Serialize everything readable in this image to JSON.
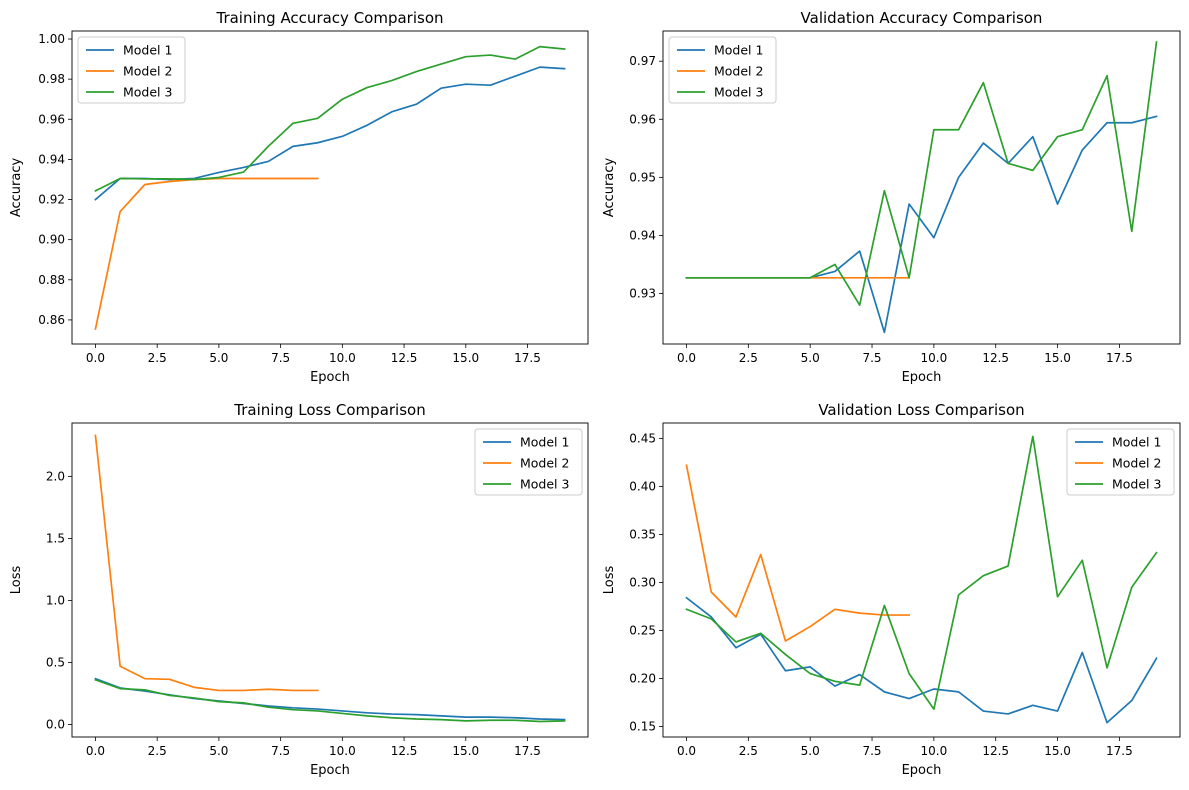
{
  "colors": {
    "Model 1": "#1f77b4",
    "Model 2": "#ff7f0e",
    "Model 3": "#2ca02c"
  },
  "chart_data": [
    {
      "type": "line",
      "title": "Training Accuracy Comparison",
      "xlabel": "Epoch",
      "ylabel": "Accuracy",
      "xlim": [
        -0.95,
        19.95
      ],
      "ylim": [
        0.848,
        1.004
      ],
      "xticks": [
        0.0,
        2.5,
        5.0,
        7.5,
        10.0,
        12.5,
        15.0,
        17.5
      ],
      "xtick_labels": [
        "0.0",
        "2.5",
        "5.0",
        "7.5",
        "10.0",
        "12.5",
        "15.0",
        "17.5"
      ],
      "yticks": [
        0.86,
        0.88,
        0.9,
        0.92,
        0.94,
        0.96,
        0.98,
        1.0
      ],
      "ytick_labels": [
        "0.86",
        "0.88",
        "0.90",
        "0.92",
        "0.94",
        "0.96",
        "0.98",
        "1.00"
      ],
      "legend": "top-left",
      "series": [
        {
          "name": "Model 1",
          "x": [
            0,
            1,
            2,
            3,
            4,
            5,
            6,
            7,
            8,
            9,
            10,
            11,
            12,
            13,
            14,
            15,
            16,
            17,
            18,
            19
          ],
          "values": [
            0.92,
            0.9305,
            0.9305,
            0.93,
            0.9305,
            0.9335,
            0.936,
            0.939,
            0.9465,
            0.9483,
            0.9515,
            0.957,
            0.9637,
            0.9675,
            0.9755,
            0.9775,
            0.977,
            0.9815,
            0.986,
            0.9852
          ]
        },
        {
          "name": "Model 2",
          "x": [
            0,
            1,
            2,
            3,
            4,
            5,
            6,
            7,
            8,
            9
          ],
          "values": [
            0.8555,
            0.914,
            0.9275,
            0.929,
            0.93,
            0.9305,
            0.9305,
            0.9305,
            0.9305,
            0.9305
          ]
        },
        {
          "name": "Model 3",
          "x": [
            0,
            1,
            2,
            3,
            4,
            5,
            6,
            7,
            8,
            9,
            10,
            11,
            12,
            13,
            14,
            15,
            16,
            17,
            18,
            19
          ],
          "values": [
            0.9243,
            0.9305,
            0.9303,
            0.9303,
            0.93,
            0.931,
            0.9337,
            0.9465,
            0.958,
            0.9605,
            0.97,
            0.9758,
            0.9793,
            0.9838,
            0.9875,
            0.9912,
            0.992,
            0.99,
            0.9962,
            0.995
          ]
        }
      ]
    },
    {
      "type": "line",
      "title": "Validation Accuracy Comparison",
      "xlabel": "Epoch",
      "ylabel": "Accuracy",
      "xlim": [
        -0.95,
        19.95
      ],
      "ylim": [
        0.9213,
        0.9752
      ],
      "xticks": [
        0.0,
        2.5,
        5.0,
        7.5,
        10.0,
        12.5,
        15.0,
        17.5
      ],
      "xtick_labels": [
        "0.0",
        "2.5",
        "5.0",
        "7.5",
        "10.0",
        "12.5",
        "15.0",
        "17.5"
      ],
      "yticks": [
        0.93,
        0.94,
        0.95,
        0.96,
        0.97
      ],
      "ytick_labels": [
        "0.93",
        "0.94",
        "0.95",
        "0.96",
        "0.97"
      ],
      "legend": "top-left",
      "series": [
        {
          "name": "Model 1",
          "x": [
            0,
            1,
            2,
            3,
            4,
            5,
            6,
            7,
            8,
            9,
            10,
            11,
            12,
            13,
            14,
            15,
            16,
            17,
            18,
            19
          ],
          "values": [
            0.9327,
            0.9327,
            0.9327,
            0.9327,
            0.9327,
            0.9327,
            0.9338,
            0.9373,
            0.9233,
            0.9454,
            0.9396,
            0.95,
            0.9559,
            0.9524,
            0.957,
            0.9454,
            0.9547,
            0.9594,
            0.9594,
            0.9605
          ]
        },
        {
          "name": "Model 2",
          "x": [
            0,
            1,
            2,
            3,
            4,
            5,
            6,
            7,
            8,
            9
          ],
          "values": [
            0.9327,
            0.9327,
            0.9327,
            0.9327,
            0.9327,
            0.9327,
            0.9327,
            0.9327,
            0.9327,
            0.9327
          ]
        },
        {
          "name": "Model 3",
          "x": [
            0,
            1,
            2,
            3,
            4,
            5,
            6,
            7,
            8,
            9,
            10,
            11,
            12,
            13,
            14,
            15,
            16,
            17,
            18,
            19
          ],
          "values": [
            0.9327,
            0.9327,
            0.9327,
            0.9327,
            0.9327,
            0.9327,
            0.935,
            0.928,
            0.9477,
            0.9327,
            0.9582,
            0.9582,
            0.9663,
            0.9524,
            0.9512,
            0.957,
            0.9582,
            0.9675,
            0.9407,
            0.9733
          ]
        }
      ]
    },
    {
      "type": "line",
      "title": "Training Loss Comparison",
      "xlabel": "Epoch",
      "ylabel": "Loss",
      "xlim": [
        -0.95,
        19.95
      ],
      "ylim": [
        -0.1,
        2.43
      ],
      "xticks": [
        0.0,
        2.5,
        5.0,
        7.5,
        10.0,
        12.5,
        15.0,
        17.5
      ],
      "xtick_labels": [
        "0.0",
        "2.5",
        "5.0",
        "7.5",
        "10.0",
        "12.5",
        "15.0",
        "17.5"
      ],
      "yticks": [
        0.0,
        0.5,
        1.0,
        1.5,
        2.0
      ],
      "ytick_labels": [
        "0.0",
        "0.5",
        "1.0",
        "1.5",
        "2.0"
      ],
      "legend": "top-right",
      "series": [
        {
          "name": "Model 1",
          "x": [
            0,
            1,
            2,
            3,
            4,
            5,
            6,
            7,
            8,
            9,
            10,
            11,
            12,
            13,
            14,
            15,
            16,
            17,
            18,
            19
          ],
          "values": [
            0.37,
            0.295,
            0.27,
            0.24,
            0.21,
            0.19,
            0.17,
            0.15,
            0.135,
            0.125,
            0.11,
            0.095,
            0.085,
            0.08,
            0.07,
            0.06,
            0.06,
            0.055,
            0.045,
            0.04
          ]
        },
        {
          "name": "Model 2",
          "x": [
            0,
            1,
            2,
            3,
            4,
            5,
            6,
            7,
            8,
            9
          ],
          "values": [
            2.33,
            0.47,
            0.37,
            0.365,
            0.3,
            0.275,
            0.275,
            0.285,
            0.275,
            0.275
          ]
        },
        {
          "name": "Model 3",
          "x": [
            0,
            1,
            2,
            3,
            4,
            5,
            6,
            7,
            8,
            9,
            10,
            11,
            12,
            13,
            14,
            15,
            16,
            17,
            18,
            19
          ],
          "values": [
            0.36,
            0.29,
            0.28,
            0.235,
            0.215,
            0.185,
            0.175,
            0.14,
            0.12,
            0.11,
            0.09,
            0.07,
            0.055,
            0.045,
            0.04,
            0.03,
            0.035,
            0.035,
            0.025,
            0.03
          ]
        }
      ]
    },
    {
      "type": "line",
      "title": "Validation Loss Comparison",
      "xlabel": "Epoch",
      "ylabel": "Loss",
      "xlim": [
        -0.95,
        19.95
      ],
      "ylim": [
        0.139,
        0.466
      ],
      "xticks": [
        0.0,
        2.5,
        5.0,
        7.5,
        10.0,
        12.5,
        15.0,
        17.5
      ],
      "xtick_labels": [
        "0.0",
        "2.5",
        "5.0",
        "7.5",
        "10.0",
        "12.5",
        "15.0",
        "17.5"
      ],
      "yticks": [
        0.15,
        0.2,
        0.25,
        0.3,
        0.35,
        0.4,
        0.45
      ],
      "ytick_labels": [
        "0.15",
        "0.20",
        "0.25",
        "0.30",
        "0.35",
        "0.40",
        "0.45"
      ],
      "legend": "top-right",
      "series": [
        {
          "name": "Model 1",
          "x": [
            0,
            1,
            2,
            3,
            4,
            5,
            6,
            7,
            8,
            9,
            10,
            11,
            12,
            13,
            14,
            15,
            16,
            17,
            18,
            19
          ],
          "values": [
            0.284,
            0.264,
            0.232,
            0.246,
            0.208,
            0.212,
            0.192,
            0.204,
            0.186,
            0.179,
            0.189,
            0.186,
            0.166,
            0.163,
            0.172,
            0.166,
            0.227,
            0.154,
            0.177,
            0.221
          ]
        },
        {
          "name": "Model 2",
          "x": [
            0,
            1,
            2,
            3,
            4,
            5,
            6,
            7,
            8,
            9
          ],
          "values": [
            0.422,
            0.29,
            0.264,
            0.329,
            0.239,
            0.254,
            0.272,
            0.268,
            0.266,
            0.266
          ]
        },
        {
          "name": "Model 3",
          "x": [
            0,
            1,
            2,
            3,
            4,
            5,
            6,
            7,
            8,
            9,
            10,
            11,
            12,
            13,
            14,
            15,
            16,
            17,
            18,
            19
          ],
          "values": [
            0.272,
            0.262,
            0.238,
            0.247,
            0.225,
            0.205,
            0.197,
            0.193,
            0.276,
            0.205,
            0.168,
            0.287,
            0.307,
            0.317,
            0.452,
            0.285,
            0.323,
            0.211,
            0.295,
            0.331
          ]
        }
      ]
    }
  ]
}
